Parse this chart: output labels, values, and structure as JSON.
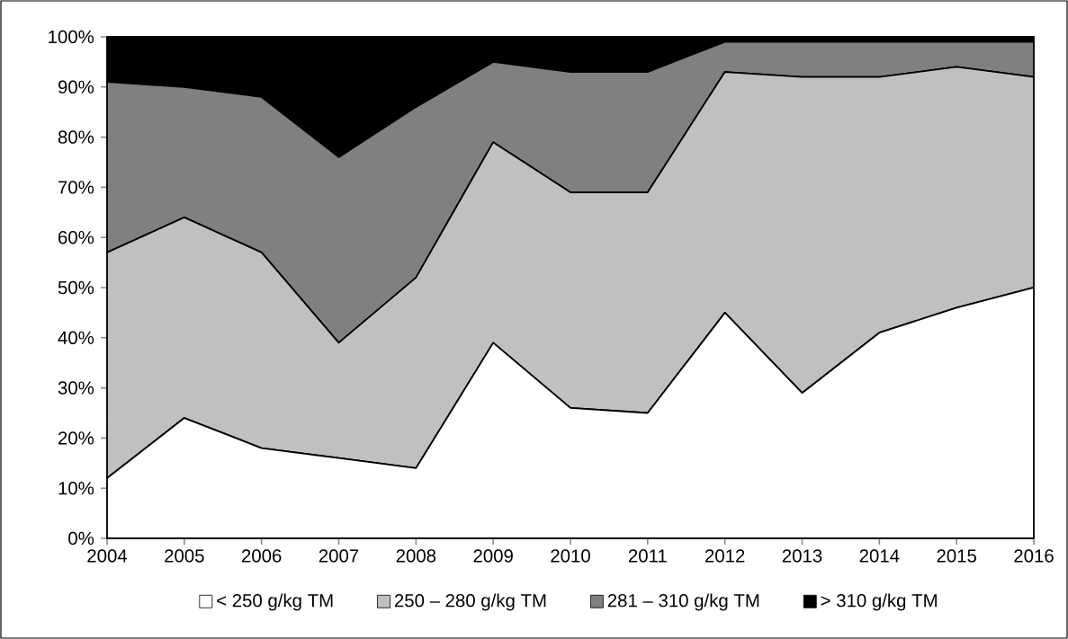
{
  "chart_data": {
    "type": "area",
    "stacked": true,
    "categories": [
      "2004",
      "2005",
      "2006",
      "2007",
      "2008",
      "2009",
      "2010",
      "2011",
      "2012",
      "2013",
      "2014",
      "2015",
      "2016"
    ],
    "series": [
      {
        "name": "< 250 g/kg TM",
        "color": "#ffffff",
        "values": [
          12,
          24,
          18,
          16,
          14,
          39,
          26,
          25,
          45,
          29,
          41,
          46,
          50
        ]
      },
      {
        "name": "250 – 280 g/kg TM",
        "color": "#c0c0c0",
        "values": [
          45,
          40,
          39,
          23,
          38,
          40,
          43,
          44,
          48,
          63,
          51,
          48,
          42
        ]
      },
      {
        "name": "281 – 310 g/kg TM",
        "color": "#808080",
        "values": [
          34,
          26,
          31,
          37,
          34,
          16,
          24,
          24,
          6,
          7,
          7,
          5,
          7
        ]
      },
      {
        "name": "> 310 g/kg TM",
        "color": "#000000",
        "values": [
          9,
          10,
          12,
          24,
          14,
          5,
          7,
          7,
          1,
          1,
          1,
          1,
          1
        ]
      }
    ],
    "ylim": [
      0,
      100
    ],
    "yticks": [
      {
        "value": 0,
        "label": "0%"
      },
      {
        "value": 10,
        "label": "10%"
      },
      {
        "value": 20,
        "label": "20%"
      },
      {
        "value": 30,
        "label": "30%"
      },
      {
        "value": 40,
        "label": "40%"
      },
      {
        "value": 50,
        "label": "50%"
      },
      {
        "value": 60,
        "label": "60%"
      },
      {
        "value": 70,
        "label": "70%"
      },
      {
        "value": 80,
        "label": "80%"
      },
      {
        "value": 90,
        "label": "90%"
      },
      {
        "value": 100,
        "label": "100%"
      }
    ],
    "legend": "bottom"
  }
}
